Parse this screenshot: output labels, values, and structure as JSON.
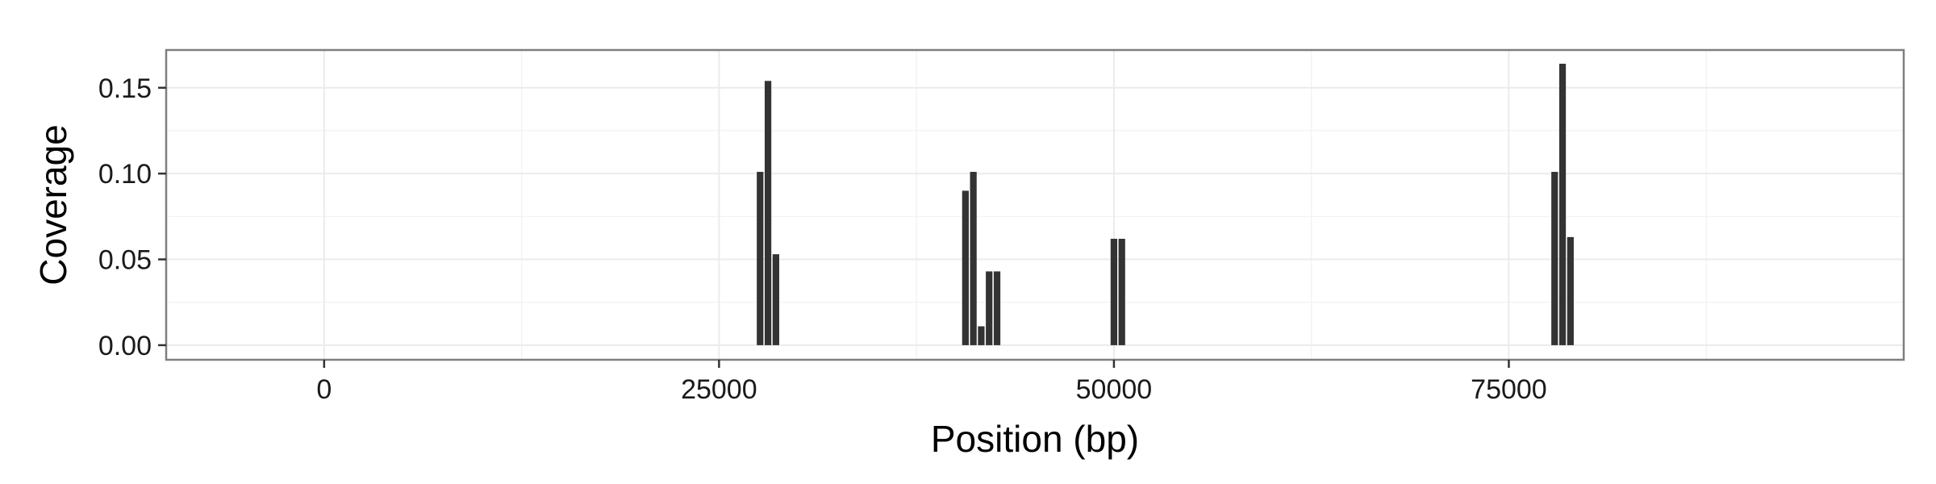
{
  "chart_data": {
    "type": "bar",
    "title": "",
    "xlabel": "Position (bp)",
    "ylabel": "Coverage",
    "xlim": [
      -10000,
      100000
    ],
    "ylim": [
      -0.0085,
      0.172
    ],
    "x_ticks": [
      0,
      25000,
      50000,
      75000
    ],
    "x_tick_labels": [
      "0",
      "25000",
      "50000",
      "75000"
    ],
    "y_ticks": [
      0,
      0.05,
      0.1,
      0.15
    ],
    "y_tick_labels": [
      "0.00",
      "0.05",
      "0.10",
      "0.15"
    ],
    "bin_width": 420,
    "grid": true,
    "bar_color": "#333333",
    "panel_background": "#ffffff",
    "grid_color": "#ebebeb",
    "points": [
      {
        "x": 27600,
        "y": 0.101
      },
      {
        "x": 28100,
        "y": 0.154
      },
      {
        "x": 28600,
        "y": 0.053
      },
      {
        "x": 40600,
        "y": 0.09
      },
      {
        "x": 41100,
        "y": 0.101
      },
      {
        "x": 41600,
        "y": 0.011
      },
      {
        "x": 42100,
        "y": 0.043
      },
      {
        "x": 42600,
        "y": 0.043
      },
      {
        "x": 50000,
        "y": 0.062
      },
      {
        "x": 50500,
        "y": 0.062
      },
      {
        "x": 77900,
        "y": 0.101
      },
      {
        "x": 78400,
        "y": 0.164
      },
      {
        "x": 78900,
        "y": 0.063
      }
    ]
  }
}
